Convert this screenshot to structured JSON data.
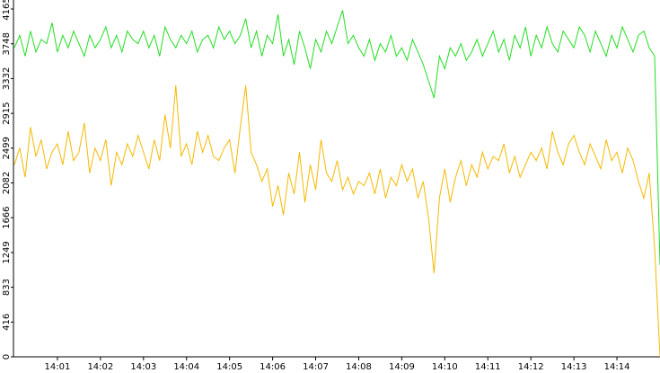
{
  "chart_data": {
    "type": "line",
    "x": [
      0,
      0.125,
      0.25,
      0.375,
      0.5,
      0.625,
      0.75,
      0.875,
      1,
      1.125,
      1.25,
      1.375,
      1.5,
      1.625,
      1.75,
      1.875,
      2,
      2.125,
      2.25,
      2.375,
      2.5,
      2.625,
      2.75,
      2.875,
      3,
      3.125,
      3.25,
      3.375,
      3.5,
      3.625,
      3.75,
      3.875,
      4,
      4.125,
      4.25,
      4.375,
      4.5,
      4.625,
      4.75,
      4.875,
      5,
      5.125,
      5.25,
      5.375,
      5.5,
      5.625,
      5.75,
      5.875,
      6,
      6.125,
      6.25,
      6.375,
      6.5,
      6.625,
      6.75,
      6.875,
      7,
      7.125,
      7.25,
      7.375,
      7.5,
      7.625,
      7.75,
      7.875,
      8,
      8.125,
      8.25,
      8.375,
      8.5,
      8.625,
      8.75,
      8.875,
      9,
      9.125,
      9.25,
      9.375,
      9.5,
      9.625,
      9.75,
      9.875,
      10,
      10.125,
      10.25,
      10.375,
      10.5,
      10.625,
      10.75,
      10.875,
      11,
      11.125,
      11.25,
      11.375,
      11.5,
      11.625,
      11.75,
      11.875,
      12,
      12.125,
      12.25,
      12.375,
      12.5,
      12.625,
      12.75,
      12.875,
      13,
      13.125,
      13.25,
      13.375,
      13.5,
      13.625,
      13.75,
      13.875,
      14,
      14.125,
      14.25,
      14.375,
      14.5,
      14.625,
      14.75,
      14.875,
      15
    ],
    "series": [
      {
        "color": "#22dd22",
        "values": [
          3700,
          3850,
          3600,
          3900,
          3650,
          3800,
          3750,
          4000,
          3650,
          3850,
          3700,
          3900,
          3750,
          3600,
          3850,
          3700,
          3800,
          3950,
          3700,
          3850,
          3650,
          3900,
          3800,
          3750,
          3900,
          3700,
          3850,
          3600,
          3950,
          3800,
          3700,
          3850,
          3750,
          3900,
          3650,
          3800,
          3850,
          3700,
          3950,
          3800,
          3900,
          3750,
          3850,
          4050,
          3700,
          3900,
          3600,
          3850,
          3750,
          4100,
          3600,
          3800,
          3500,
          3900,
          3700,
          3450,
          3800,
          3650,
          3900,
          3750,
          3950,
          4150,
          3750,
          3850,
          3700,
          3600,
          3800,
          3550,
          3750,
          3650,
          3850,
          3600,
          3700,
          3550,
          3800,
          3650,
          3500,
          3300,
          3100,
          3600,
          3450,
          3700,
          3600,
          3750,
          3550,
          3650,
          3800,
          3600,
          3750,
          3900,
          3650,
          3800,
          3550,
          3850,
          3700,
          3950,
          3600,
          3850,
          3700,
          3950,
          3750,
          3650,
          3900,
          3800,
          3700,
          3950,
          3850,
          3650,
          3900,
          3750,
          3600,
          3850,
          3700,
          3950,
          3800,
          3650,
          3850,
          3900,
          3700,
          3600,
          1100
        ]
      },
      {
        "color": "#f5b800",
        "values": [
          2300,
          2500,
          2150,
          2750,
          2400,
          2600,
          2250,
          2450,
          2550,
          2300,
          2700,
          2350,
          2450,
          2800,
          2200,
          2500,
          2350,
          2600,
          2050,
          2450,
          2300,
          2550,
          2400,
          2650,
          2450,
          2250,
          2600,
          2350,
          2900,
          2500,
          3250,
          2400,
          2550,
          2300,
          2700,
          2450,
          2650,
          2400,
          2350,
          2500,
          2600,
          2200,
          2750,
          3250,
          2450,
          2300,
          2100,
          2250,
          1800,
          2050,
          1700,
          2200,
          1950,
          2450,
          1850,
          2300,
          2000,
          2600,
          2200,
          2100,
          2350,
          2000,
          2150,
          1950,
          2100,
          2050,
          2200,
          1950,
          2250,
          1900,
          2150,
          2050,
          2300,
          2100,
          2250,
          1900,
          2100,
          1650,
          1000,
          1900,
          2250,
          1850,
          2150,
          2350,
          2050,
          2300,
          2150,
          2450,
          2250,
          2400,
          2350,
          2550,
          2200,
          2400,
          2150,
          2300,
          2450,
          2350,
          2500,
          2250,
          2700,
          2450,
          2300,
          2550,
          2650,
          2450,
          2300,
          2550,
          2400,
          2250,
          2600,
          2350,
          2450,
          2200,
          2500,
          2350,
          2100,
          1900,
          2200,
          1300,
          0
        ]
      }
    ],
    "xlim": [
      0,
      15
    ],
    "xticks": [
      {
        "value": 1,
        "label": "14:01"
      },
      {
        "value": 2,
        "label": "14:02"
      },
      {
        "value": 3,
        "label": "14:03"
      },
      {
        "value": 4,
        "label": "14:04"
      },
      {
        "value": 5,
        "label": "14:05"
      },
      {
        "value": 6,
        "label": "14:06"
      },
      {
        "value": 7,
        "label": "14:07"
      },
      {
        "value": 8,
        "label": "14:08"
      },
      {
        "value": 9,
        "label": "14:09"
      },
      {
        "value": 10,
        "label": "14:10"
      },
      {
        "value": 11,
        "label": "14:11"
      },
      {
        "value": 12,
        "label": "14:12"
      },
      {
        "value": 13,
        "label": "14:13"
      },
      {
        "value": 14,
        "label": "14:14"
      }
    ],
    "ylim": [
      0,
      4165
    ],
    "yticks": [
      0,
      416,
      833,
      1249,
      1666,
      2082,
      2499,
      2915,
      3332,
      3748,
      4165
    ]
  }
}
